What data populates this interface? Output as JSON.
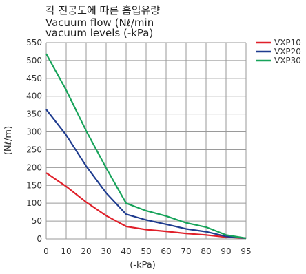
{
  "chart_data": {
    "type": "line",
    "title_lines": [
      "각 진공도에 따른 흡입유량",
      "Vacuum flow (Nℓ/min",
      "vacuum levels (-kPa)"
    ],
    "xlabel": "(-kPa)",
    "ylabel": "(Nℓ/m)",
    "categories": [
      "0",
      "10",
      "20",
      "30",
      "40",
      "50",
      "60",
      "70",
      "80",
      "90",
      "95"
    ],
    "yticks": [
      0,
      50,
      100,
      150,
      200,
      250,
      300,
      350,
      400,
      450,
      500,
      550
    ],
    "ylim": [
      0,
      550
    ],
    "grid": true,
    "legend_position": "right",
    "series": [
      {
        "name": "VXP10",
        "color": "#e0202a",
        "values": [
          185,
          147,
          103,
          65,
          35,
          26,
          21,
          15,
          11,
          5,
          2
        ]
      },
      {
        "name": "VXP20",
        "color": "#1f3c8f",
        "values": [
          363,
          291,
          204,
          129,
          69,
          53,
          41,
          28,
          20,
          7,
          2
        ]
      },
      {
        "name": "VXP30",
        "color": "#17a35a",
        "values": [
          519,
          417,
          303,
          199,
          100,
          79,
          64,
          45,
          33,
          11,
          2
        ]
      }
    ]
  }
}
